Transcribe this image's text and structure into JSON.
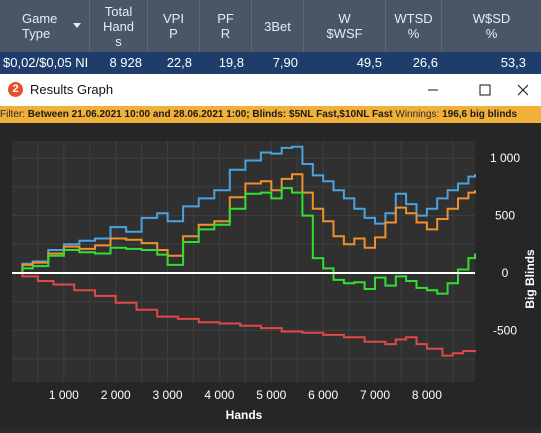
{
  "stats": {
    "headers": [
      {
        "label": "Game Type",
        "lines": [
          "Game",
          "Type"
        ]
      },
      {
        "label": "Total Hands",
        "lines": [
          "Total",
          "Hand",
          "s"
        ]
      },
      {
        "label": "VPIP",
        "lines": [
          "VPI",
          "P"
        ]
      },
      {
        "label": "PFR",
        "lines": [
          "PF",
          "R"
        ]
      },
      {
        "label": "3Bet",
        "lines": [
          "3Bet"
        ]
      },
      {
        "label": "W$WSF",
        "lines": [
          "W",
          "$WSF"
        ]
      },
      {
        "label": "WTSD %",
        "lines": [
          "WTSD",
          "%"
        ]
      },
      {
        "label": "W$SD %",
        "lines": [
          "W$SD",
          "%"
        ]
      }
    ],
    "row": [
      "$0,02/$0,05 NI",
      "8 928",
      "22,8",
      "19,8",
      "7,90",
      "49,5",
      "26,6",
      "53,3"
    ]
  },
  "window": {
    "title": "Results Graph",
    "icon_text": "2"
  },
  "filter": {
    "prefix": "Filter: ",
    "text": "Between 21.06.2021 10:00 and 28.06.2021 1:00; Blinds: $5NL Fast,$10NL Fast",
    "winnings_label": "  Winnings: ",
    "winnings_value": "196,6 big blinds"
  },
  "colors": {
    "header_bg": "#4a5566",
    "row_bg": "#1f3d6a",
    "filter_bg": "#f0b03a",
    "blue": "#4aa3e0",
    "orange": "#f0902a",
    "green": "#33dd33",
    "red": "#e04848",
    "zero_line": "#ffffff"
  },
  "chart_data": {
    "type": "line",
    "xlabel": "Hands",
    "ylabel": "Big Blinds",
    "xlim": [
      0,
      8928
    ],
    "ylim": [
      -950,
      1150
    ],
    "x_ticks": [
      1000,
      2000,
      3000,
      4000,
      5000,
      6000,
      7000,
      8000
    ],
    "x_tick_labels": [
      "1 000",
      "2 000",
      "3 000",
      "4 000",
      "5 000",
      "6 000",
      "7 000",
      "8 000"
    ],
    "y_ticks": [
      1000,
      500,
      0,
      -500
    ],
    "y_tick_labels": [
      "1 000",
      "500",
      "0",
      "-500"
    ],
    "grid": true,
    "series": [
      {
        "color": "#4aa3e0",
        "points": [
          [
            0,
            0
          ],
          [
            200,
            80
          ],
          [
            400,
            100
          ],
          [
            700,
            200
          ],
          [
            1000,
            250
          ],
          [
            1300,
            280
          ],
          [
            1600,
            300
          ],
          [
            1900,
            400
          ],
          [
            2200,
            360
          ],
          [
            2500,
            480
          ],
          [
            2800,
            520
          ],
          [
            3000,
            450
          ],
          [
            3300,
            580
          ],
          [
            3600,
            650
          ],
          [
            3900,
            720
          ],
          [
            4200,
            900
          ],
          [
            4500,
            980
          ],
          [
            4800,
            1050
          ],
          [
            5000,
            1040
          ],
          [
            5200,
            1090
          ],
          [
            5400,
            1100
          ],
          [
            5600,
            950
          ],
          [
            5800,
            850
          ],
          [
            6000,
            800
          ],
          [
            6200,
            720
          ],
          [
            6400,
            650
          ],
          [
            6600,
            560
          ],
          [
            6800,
            480
          ],
          [
            7000,
            430
          ],
          [
            7200,
            520
          ],
          [
            7400,
            690
          ],
          [
            7600,
            600
          ],
          [
            7800,
            500
          ],
          [
            8000,
            560
          ],
          [
            8200,
            650
          ],
          [
            8400,
            720
          ],
          [
            8600,
            780
          ],
          [
            8800,
            840
          ],
          [
            8928,
            860
          ]
        ]
      },
      {
        "color": "#f0902a",
        "points": [
          [
            0,
            0
          ],
          [
            200,
            70
          ],
          [
            400,
            90
          ],
          [
            700,
            170
          ],
          [
            1000,
            230
          ],
          [
            1300,
            210
          ],
          [
            1600,
            240
          ],
          [
            1900,
            300
          ],
          [
            2200,
            290
          ],
          [
            2500,
            260
          ],
          [
            2800,
            200
          ],
          [
            3000,
            150
          ],
          [
            3300,
            320
          ],
          [
            3600,
            420
          ],
          [
            3900,
            450
          ],
          [
            4200,
            660
          ],
          [
            4500,
            780
          ],
          [
            4800,
            800
          ],
          [
            5000,
            720
          ],
          [
            5200,
            820
          ],
          [
            5400,
            860
          ],
          [
            5600,
            700
          ],
          [
            5800,
            560
          ],
          [
            6000,
            450
          ],
          [
            6200,
            320
          ],
          [
            6400,
            250
          ],
          [
            6600,
            300
          ],
          [
            6800,
            220
          ],
          [
            7000,
            310
          ],
          [
            7200,
            440
          ],
          [
            7400,
            570
          ],
          [
            7600,
            520
          ],
          [
            7800,
            440
          ],
          [
            8000,
            380
          ],
          [
            8200,
            470
          ],
          [
            8400,
            560
          ],
          [
            8600,
            650
          ],
          [
            8800,
            700
          ],
          [
            8928,
            720
          ]
        ]
      },
      {
        "color": "#33dd33",
        "points": [
          [
            0,
            0
          ],
          [
            200,
            40
          ],
          [
            400,
            60
          ],
          [
            700,
            150
          ],
          [
            1000,
            200
          ],
          [
            1300,
            180
          ],
          [
            1600,
            170
          ],
          [
            1900,
            220
          ],
          [
            2200,
            210
          ],
          [
            2500,
            200
          ],
          [
            2800,
            160
          ],
          [
            3000,
            70
          ],
          [
            3300,
            270
          ],
          [
            3600,
            380
          ],
          [
            3900,
            420
          ],
          [
            4200,
            560
          ],
          [
            4500,
            690
          ],
          [
            4800,
            700
          ],
          [
            5000,
            650
          ],
          [
            5200,
            740
          ],
          [
            5400,
            700
          ],
          [
            5600,
            500
          ],
          [
            5800,
            130
          ],
          [
            6000,
            40
          ],
          [
            6200,
            -60
          ],
          [
            6400,
            -90
          ],
          [
            6600,
            -80
          ],
          [
            6800,
            -140
          ],
          [
            7000,
            -40
          ],
          [
            7200,
            -110
          ],
          [
            7400,
            -30
          ],
          [
            7600,
            -70
          ],
          [
            7800,
            -130
          ],
          [
            8000,
            -150
          ],
          [
            8200,
            -180
          ],
          [
            8400,
            -90
          ],
          [
            8600,
            30
          ],
          [
            8800,
            130
          ],
          [
            8928,
            170
          ]
        ]
      },
      {
        "color": "#e04848",
        "points": [
          [
            0,
            0
          ],
          [
            200,
            -30
          ],
          [
            500,
            -70
          ],
          [
            800,
            -100
          ],
          [
            1200,
            -150
          ],
          [
            1600,
            -200
          ],
          [
            2000,
            -260
          ],
          [
            2400,
            -320
          ],
          [
            2800,
            -380
          ],
          [
            3200,
            -400
          ],
          [
            3600,
            -430
          ],
          [
            4000,
            -440
          ],
          [
            4400,
            -460
          ],
          [
            4800,
            -480
          ],
          [
            5200,
            -510
          ],
          [
            5600,
            -520
          ],
          [
            6000,
            -540
          ],
          [
            6400,
            -560
          ],
          [
            6800,
            -600
          ],
          [
            7200,
            -620
          ],
          [
            7400,
            -580
          ],
          [
            7600,
            -560
          ],
          [
            7800,
            -620
          ],
          [
            8000,
            -660
          ],
          [
            8300,
            -720
          ],
          [
            8500,
            -700
          ],
          [
            8700,
            -680
          ],
          [
            8928,
            -690
          ]
        ]
      }
    ]
  }
}
